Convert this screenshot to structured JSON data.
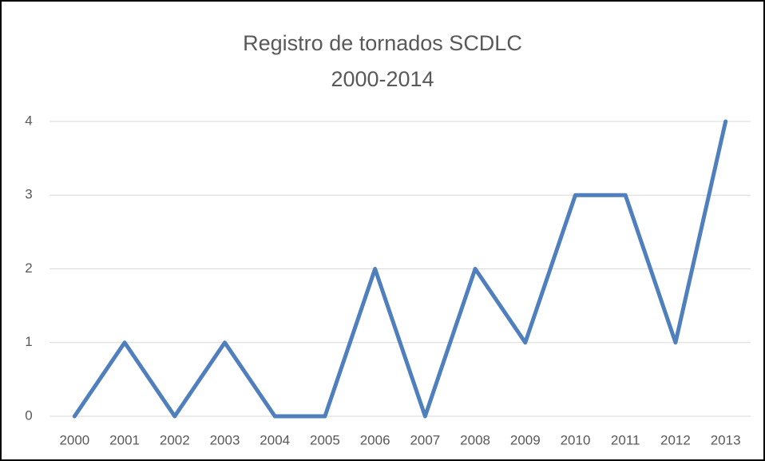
{
  "chart_data": {
    "type": "line",
    "title": "Registro de tornados SCDLC",
    "subtitle": "2000-2014",
    "categories": [
      "2000",
      "2001",
      "2002",
      "2003",
      "2004",
      "2005",
      "2006",
      "2007",
      "2008",
      "2009",
      "2010",
      "2011",
      "2012",
      "2013"
    ],
    "values": [
      0,
      1,
      0,
      1,
      0,
      0,
      2,
      0,
      2,
      1,
      3,
      3,
      1,
      4
    ],
    "color": "#4f7fbd",
    "ylim": [
      0,
      4
    ],
    "yticks": [
      0,
      1,
      2,
      3,
      4
    ],
    "grid": true
  }
}
